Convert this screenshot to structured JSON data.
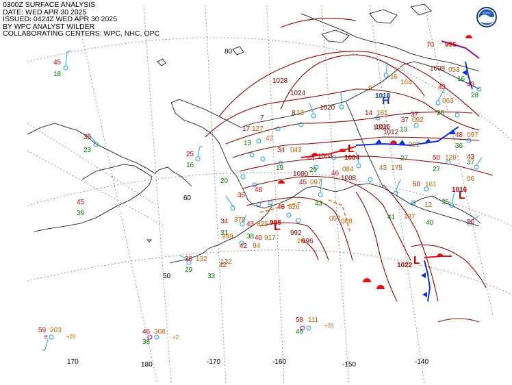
{
  "header": {
    "line1": "0300Z SURFACE ANALYSIS",
    "line2": "DATE: WED APR 30 2025",
    "line3": "ISSUED: 0424Z WED APR 30 2025",
    "line4": "BY WPC ANALYST WILDER",
    "line5": "COLLABORATING CENTERS: WPC, NHC, OPC"
  },
  "logo": {
    "text": "NOAA"
  },
  "grid_labels": {
    "lat80": "80",
    "lat60": "60",
    "lat50": "50",
    "lon170": "170",
    "lon180": "180",
    "lon_m170": "-170",
    "lon_m160": "-160",
    "lon_m150": "-150",
    "lon_m140": "-140"
  },
  "pressure_systems": [
    {
      "type": "H",
      "value": "1018",
      "color": "#1f3fb0"
    },
    {
      "type": "L",
      "value": "1004",
      "color": "#c00000"
    },
    {
      "type": "L",
      "value": "988",
      "color": "#c00000"
    },
    {
      "type": "L",
      "value": "1022",
      "color": "#c00000"
    },
    {
      "type": "L",
      "value": "1016",
      "color": "#c00000"
    },
    {
      "type": "L",
      "value": "996",
      "color": "#c00000"
    }
  ],
  "isobar_labels": [
    "1028",
    "1024",
    "1020",
    "1016",
    "1012",
    "1008",
    "1004",
    "1000",
    "996",
    "992",
    "1008",
    "1016"
  ],
  "stations": [
    {
      "t": "45",
      "d": "18"
    },
    {
      "t": "35",
      "d": "23"
    },
    {
      "t": "25",
      "d": "16"
    },
    {
      "t": "45",
      "d": "39"
    },
    {
      "t": "34",
      "d": "31"
    },
    {
      "t": "42",
      "d": "38"
    },
    {
      "t": "59",
      "p": "203",
      "tend": "+20"
    },
    {
      "t": "46",
      "p": "308",
      "d": "38",
      "tend": "+2"
    },
    {
      "t": "58",
      "p": "111",
      "d": "46",
      "tend": "+20"
    },
    {
      "t": "38",
      "p": "132",
      "d": "29"
    },
    {
      "t": "50",
      "p": "128",
      "d": "27"
    },
    {
      "t": "50",
      "p": "161",
      "d": "40"
    },
    {
      "t": "48",
      "p": "097",
      "d": "36"
    },
    {
      "t": "14",
      "p": "181"
    },
    {
      "t": "37",
      "p": "092"
    }
  ],
  "colors": {
    "isobar": "#8b0000",
    "warm_front": "#e01010",
    "cold_front": "#1030e0",
    "trough": "#e07000",
    "coast": "#000000",
    "temp": "#d00000",
    "dew": "#008000",
    "pressure": "#c06000"
  }
}
